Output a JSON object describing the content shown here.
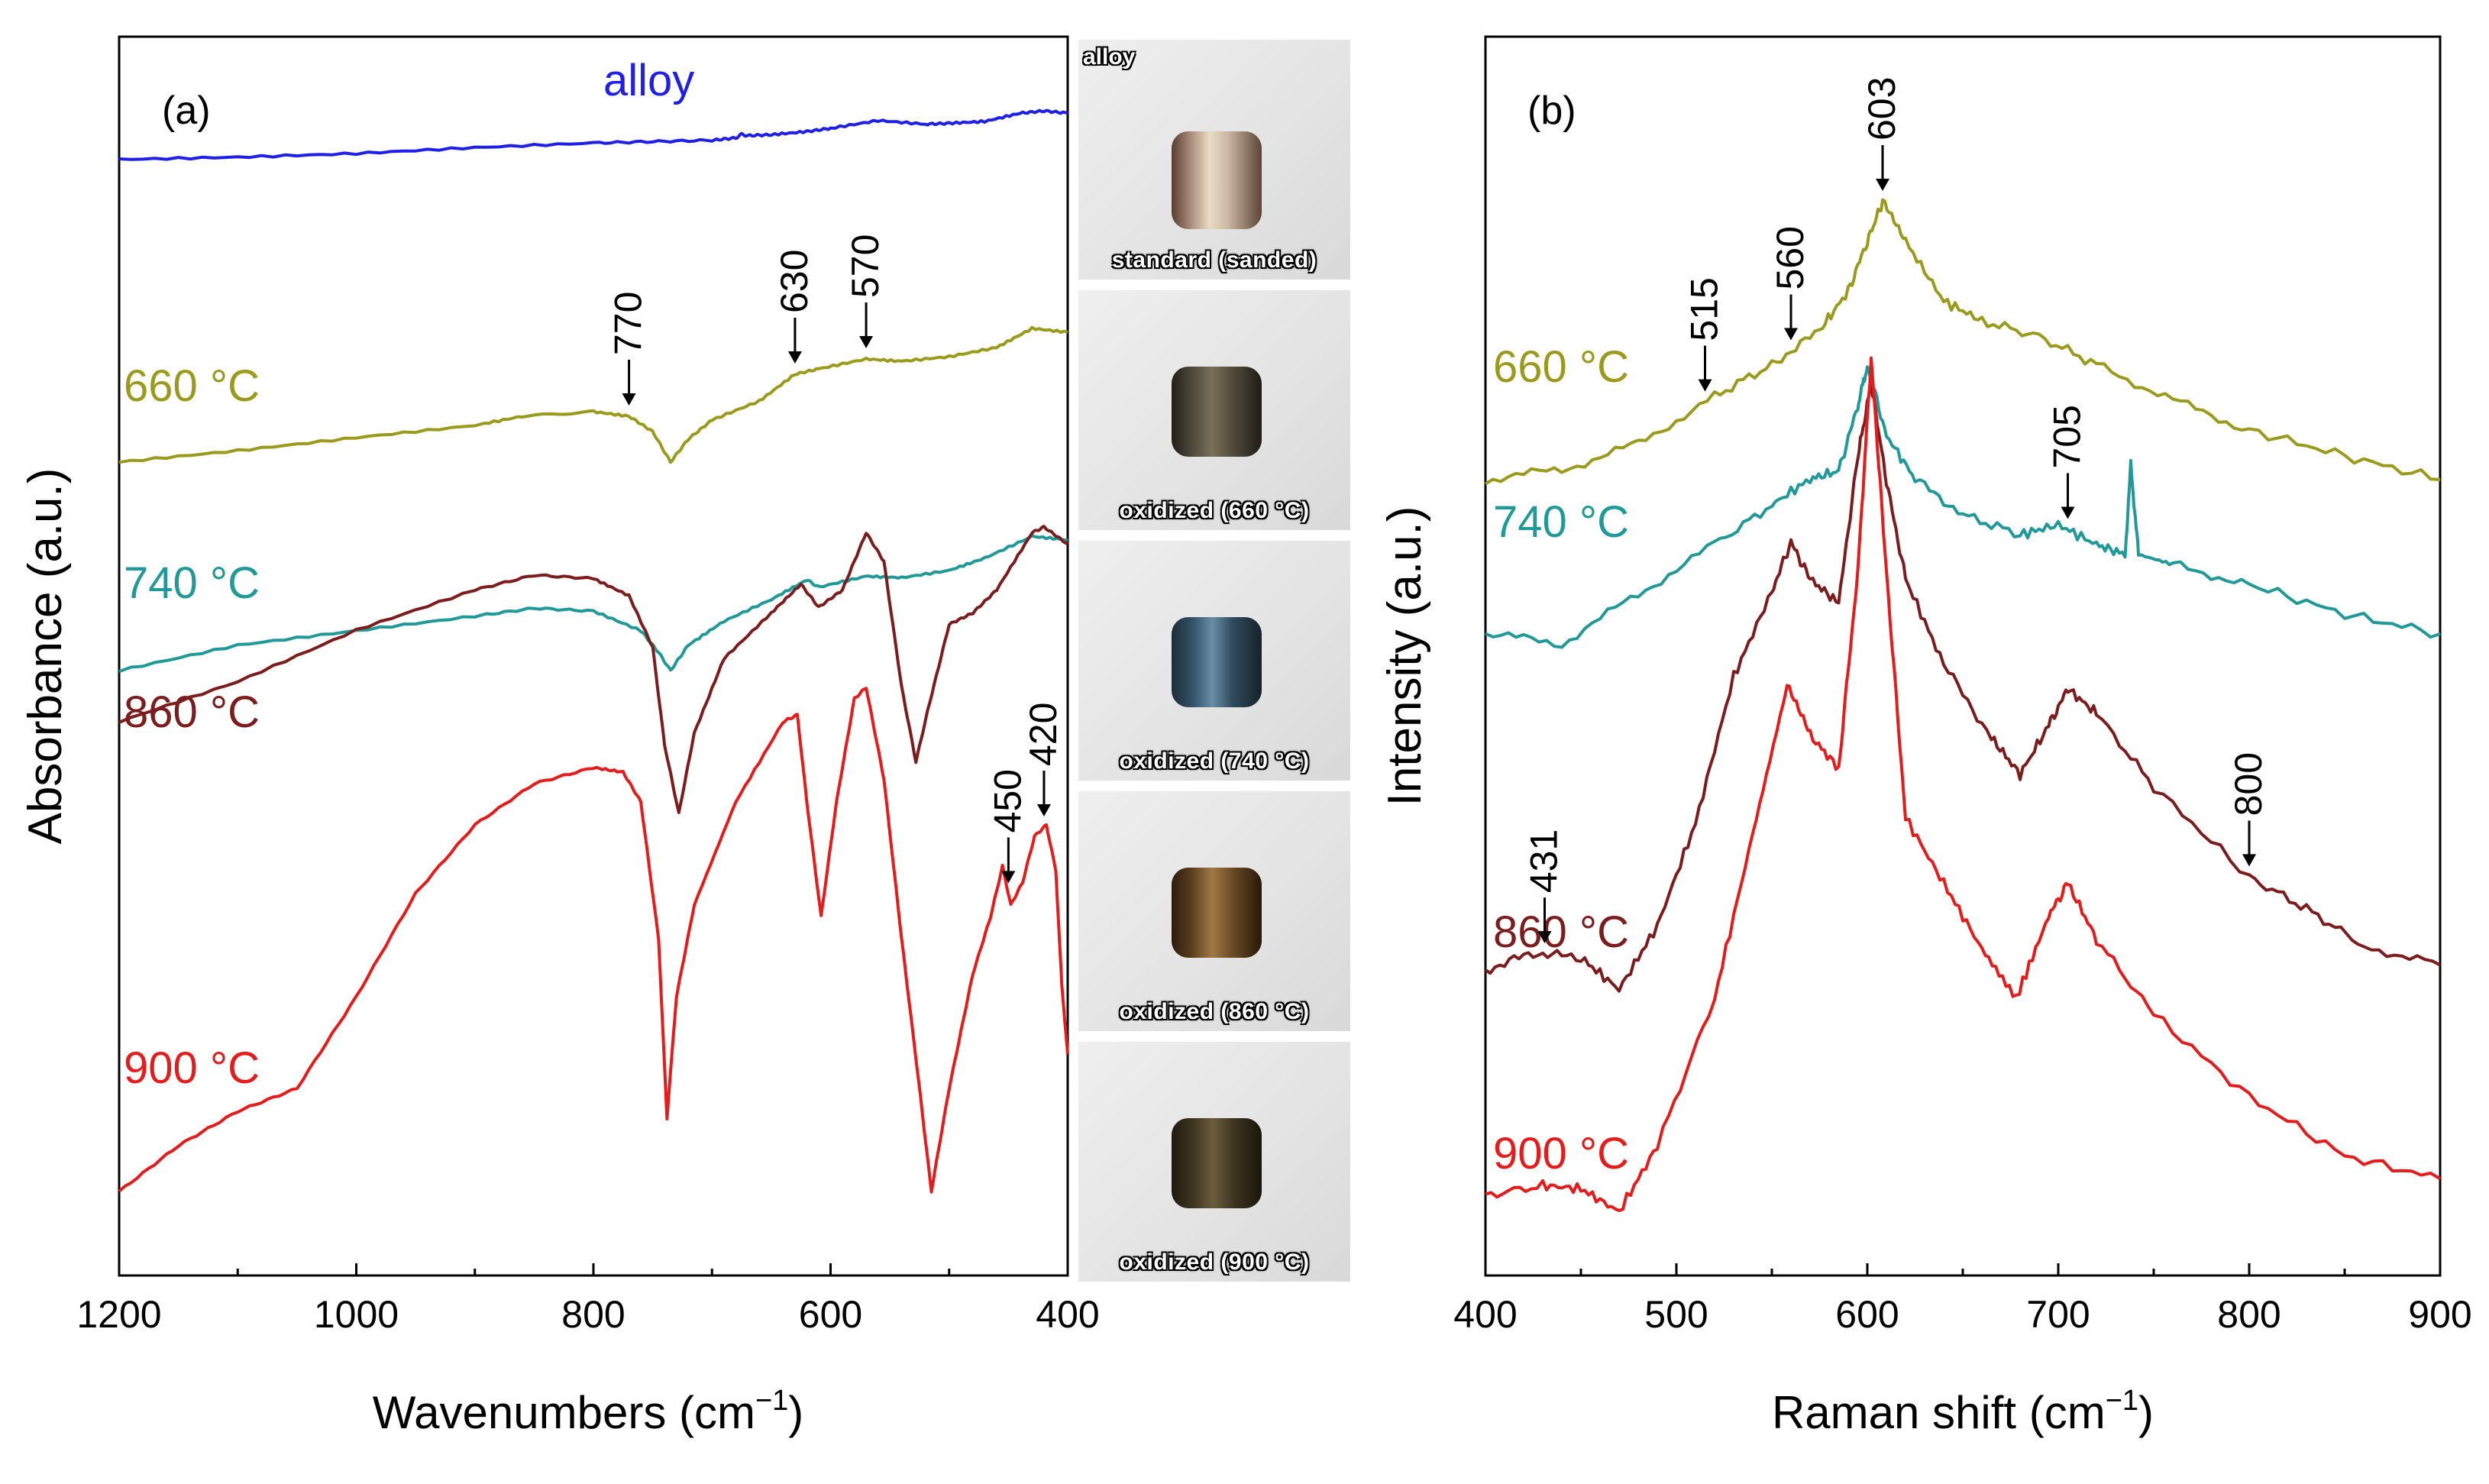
{
  "chart_data": [
    {
      "type": "line",
      "panel_label": "(a)",
      "xlabel": "Wavenumbers (cm",
      "xlabel_sup": "−1",
      "xlabel_close": ")",
      "ylabel": "Absorbance (a.u.)",
      "xlim": [
        1200,
        400
      ],
      "xticks": [
        "1200",
        "1000",
        "800",
        "600",
        "400"
      ],
      "series": [
        {
          "name": "alloy",
          "label": "alloy",
          "color": "#1f1fe6",
          "points": [
            [
              1200,
              0.27
            ],
            [
              1100,
              0.32
            ],
            [
              1000,
              0.4
            ],
            [
              900,
              0.53
            ],
            [
              800,
              0.63
            ],
            [
              750,
              0.66
            ],
            [
              700,
              0.69
            ],
            [
              680,
              0.74
            ],
            [
              675,
              0.82
            ],
            [
              670,
              0.79
            ],
            [
              650,
              0.81
            ],
            [
              620,
              0.88
            ],
            [
              600,
              0.95
            ],
            [
              560,
              1.12
            ],
            [
              520,
              1.04
            ],
            [
              500,
              1.06
            ],
            [
              470,
              1.1
            ],
            [
              440,
              1.28
            ],
            [
              420,
              1.33
            ],
            [
              400,
              1.28
            ]
          ]
        },
        {
          "name": "660 °C",
          "label": "660 °C",
          "color": "#9a9a1c",
          "points": [
            [
              1200,
              0.0
            ],
            [
              1100,
              0.15
            ],
            [
              1000,
              0.32
            ],
            [
              900,
              0.48
            ],
            [
              860,
              0.6
            ],
            [
              800,
              0.66
            ],
            [
              770,
              0.6
            ],
            [
              750,
              0.4
            ],
            [
              735,
              0.0
            ],
            [
              720,
              0.3
            ],
            [
              700,
              0.55
            ],
            [
              660,
              0.8
            ],
            [
              630,
              1.15
            ],
            [
              610,
              1.22
            ],
            [
              570,
              1.35
            ],
            [
              540,
              1.32
            ],
            [
              500,
              1.38
            ],
            [
              460,
              1.5
            ],
            [
              430,
              1.75
            ],
            [
              400,
              1.7
            ]
          ]
        },
        {
          "name": "740 °C",
          "label": "740 °C",
          "color": "#229999",
          "points": [
            [
              1200,
              0.0
            ],
            [
              1100,
              0.35
            ],
            [
              1000,
              0.55
            ],
            [
              900,
              0.75
            ],
            [
              850,
              0.86
            ],
            [
              800,
              0.82
            ],
            [
              760,
              0.55
            ],
            [
              745,
              0.25
            ],
            [
              735,
              0.0
            ],
            [
              720,
              0.35
            ],
            [
              690,
              0.68
            ],
            [
              650,
              0.98
            ],
            [
              620,
              1.25
            ],
            [
              610,
              1.15
            ],
            [
              570,
              1.3
            ],
            [
              540,
              1.28
            ],
            [
              500,
              1.38
            ],
            [
              470,
              1.55
            ],
            [
              430,
              1.85
            ],
            [
              400,
              1.8
            ]
          ]
        },
        {
          "name": "860 °C",
          "label": "860 °C",
          "color": "#7c1c1c",
          "points": [
            [
              1200,
              0.8
            ],
            [
              1100,
              1.15
            ],
            [
              1000,
              1.6
            ],
            [
              900,
              1.95
            ],
            [
              850,
              2.08
            ],
            [
              800,
              2.05
            ],
            [
              770,
              1.9
            ],
            [
              750,
              1.45
            ],
            [
              740,
              0.6
            ],
            [
              728,
              0.0
            ],
            [
              715,
              0.7
            ],
            [
              690,
              1.35
            ],
            [
              650,
              1.75
            ],
            [
              625,
              2.0
            ],
            [
              610,
              1.8
            ],
            [
              590,
              1.95
            ],
            [
              570,
              2.45
            ],
            [
              555,
              2.2
            ],
            [
              540,
              1.1
            ],
            [
              528,
              0.45
            ],
            [
              518,
              0.9
            ],
            [
              500,
              1.65
            ],
            [
              480,
              1.75
            ],
            [
              460,
              1.95
            ],
            [
              430,
              2.45
            ],
            [
              420,
              2.5
            ],
            [
              400,
              2.35
            ]
          ]
        },
        {
          "name": "900 °C",
          "label": "900 °C",
          "color": "#e51c1c",
          "points": [
            [
              1200,
              0.0
            ],
            [
              1150,
              0.2
            ],
            [
              1100,
              0.35
            ],
            [
              1050,
              0.45
            ],
            [
              1000,
              0.85
            ],
            [
              950,
              1.3
            ],
            [
              900,
              1.6
            ],
            [
              850,
              1.78
            ],
            [
              800,
              1.85
            ],
            [
              775,
              1.83
            ],
            [
              760,
              1.7
            ],
            [
              745,
              1.1
            ],
            [
              738,
              0.32
            ],
            [
              730,
              0.85
            ],
            [
              715,
              1.25
            ],
            [
              680,
              1.7
            ],
            [
              640,
              2.05
            ],
            [
              628,
              2.08
            ],
            [
              620,
              1.7
            ],
            [
              608,
              1.2
            ],
            [
              595,
              1.7
            ],
            [
              580,
              2.15
            ],
            [
              570,
              2.2
            ],
            [
              555,
              1.8
            ],
            [
              540,
              1.1
            ],
            [
              525,
              0.45
            ],
            [
              515,
              0.0
            ],
            [
              500,
              0.45
            ],
            [
              480,
              0.95
            ],
            [
              465,
              1.2
            ],
            [
              455,
              1.42
            ],
            [
              448,
              1.25
            ],
            [
              438,
              1.35
            ],
            [
              428,
              1.55
            ],
            [
              418,
              1.6
            ],
            [
              410,
              1.4
            ],
            [
              405,
              0.9
            ],
            [
              400,
              0.6
            ]
          ]
        }
      ],
      "annotations": [
        {
          "text": "770",
          "x": 770,
          "series": "660 °C"
        },
        {
          "text": "630",
          "x": 630,
          "series": "660 °C"
        },
        {
          "text": "570",
          "x": 570,
          "series": "660 °C"
        },
        {
          "text": "450",
          "x": 450,
          "series": "900 °C"
        },
        {
          "text": "420",
          "x": 420,
          "series": "900 °C"
        }
      ]
    },
    {
      "type": "line",
      "panel_label": "(b)",
      "xlabel": "Raman shift (cm",
      "xlabel_sup": "−1",
      "xlabel_close": ")",
      "ylabel": "Intensity (a.u.)",
      "xlim": [
        400,
        900
      ],
      "xticks": [
        "400",
        "500",
        "600",
        "700",
        "800",
        "900"
      ],
      "series": [
        {
          "name": "660 °C",
          "label": "660 °C",
          "color": "#9a9a1c",
          "points": [
            [
              400,
              0.0
            ],
            [
              440,
              0.05
            ],
            [
              480,
              0.18
            ],
            [
              520,
              0.42
            ],
            [
              550,
              0.58
            ],
            [
              575,
              0.75
            ],
            [
              590,
              0.95
            ],
            [
              600,
              1.2
            ],
            [
              608,
              1.4
            ],
            [
              620,
              1.2
            ],
            [
              640,
              0.9
            ],
            [
              660,
              0.8
            ],
            [
              690,
              0.72
            ],
            [
              720,
              0.58
            ],
            [
              760,
              0.4
            ],
            [
              800,
              0.25
            ],
            [
              850,
              0.12
            ],
            [
              900,
              0.0
            ]
          ]
        },
        {
          "name": "740 °C",
          "label": "740 °C",
          "color": "#229999",
          "points": [
            [
              400,
              0.0
            ],
            [
              440,
              -0.05
            ],
            [
              480,
              0.2
            ],
            [
              520,
              0.45
            ],
            [
              550,
              0.65
            ],
            [
              570,
              0.78
            ],
            [
              585,
              0.82
            ],
            [
              595,
              1.15
            ],
            [
              600,
              1.35
            ],
            [
              610,
              1.0
            ],
            [
              625,
              0.78
            ],
            [
              650,
              0.6
            ],
            [
              680,
              0.5
            ],
            [
              700,
              0.55
            ],
            [
              720,
              0.45
            ],
            [
              735,
              0.4
            ],
            [
              738,
              0.85
            ],
            [
              742,
              0.4
            ],
            [
              760,
              0.35
            ],
            [
              800,
              0.25
            ],
            [
              850,
              0.1
            ],
            [
              900,
              0.0
            ]
          ]
        },
        {
          "name": "860 °C",
          "label": "860 °C",
          "color": "#7c1c1c",
          "points": [
            [
              400,
              0.0
            ],
            [
              425,
              0.07
            ],
            [
              450,
              0.05
            ],
            [
              470,
              -0.08
            ],
            [
              490,
              0.18
            ],
            [
              510,
              0.6
            ],
            [
              530,
              1.2
            ],
            [
              550,
              1.55
            ],
            [
              560,
              1.75
            ],
            [
              570,
              1.6
            ],
            [
              585,
              1.5
            ],
            [
              595,
              2.1
            ],
            [
              602,
              2.4
            ],
            [
              610,
              2.0
            ],
            [
              620,
              1.6
            ],
            [
              640,
              1.25
            ],
            [
              665,
              0.95
            ],
            [
              680,
              0.8
            ],
            [
              695,
              1.0
            ],
            [
              705,
              1.15
            ],
            [
              720,
              1.05
            ],
            [
              750,
              0.75
            ],
            [
              800,
              0.38
            ],
            [
              830,
              0.25
            ],
            [
              860,
              0.1
            ],
            [
              900,
              0.02
            ]
          ]
        },
        {
          "name": "900 °C",
          "label": "900 °C",
          "color": "#e51c1c",
          "points": [
            [
              400,
              0.0
            ],
            [
              430,
              0.03
            ],
            [
              450,
              0.02
            ],
            [
              470,
              -0.05
            ],
            [
              490,
              0.15
            ],
            [
              520,
              0.6
            ],
            [
              540,
              1.1
            ],
            [
              558,
              1.55
            ],
            [
              570,
              1.4
            ],
            [
              585,
              1.3
            ],
            [
              595,
              1.9
            ],
            [
              602,
              2.55
            ],
            [
              610,
              1.9
            ],
            [
              620,
              1.15
            ],
            [
              640,
              0.95
            ],
            [
              660,
              0.75
            ],
            [
              678,
              0.6
            ],
            [
              695,
              0.85
            ],
            [
              705,
              0.95
            ],
            [
              720,
              0.78
            ],
            [
              750,
              0.55
            ],
            [
              800,
              0.3
            ],
            [
              850,
              0.12
            ],
            [
              900,
              0.05
            ]
          ]
        }
      ],
      "annotations": [
        {
          "text": "515",
          "x": 515,
          "series": "660 °C"
        },
        {
          "text": "560",
          "x": 560,
          "series": "660 °C"
        },
        {
          "text": "603",
          "x": 608,
          "series": "660 °C"
        },
        {
          "text": "705",
          "x": 705,
          "series": "740 °C"
        },
        {
          "text": "431",
          "x": 431,
          "series": "860 °C"
        },
        {
          "text": "800",
          "x": 800,
          "series": "860 °C"
        }
      ]
    }
  ],
  "photos": {
    "top_label": "alloy",
    "labels": [
      "standard (sanded)",
      "oxidized (660 °C)",
      "oxidized (740 °C)",
      "oxidized (860 °C)",
      "oxidized (900 °C)"
    ]
  }
}
